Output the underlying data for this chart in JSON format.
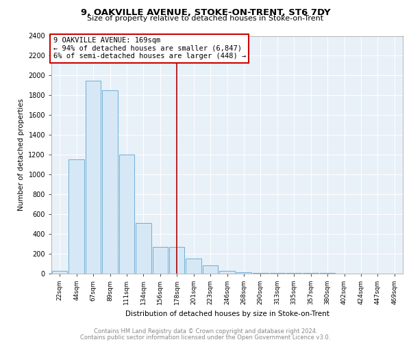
{
  "title1": "9, OAKVILLE AVENUE, STOKE-ON-TRENT, ST6 7DY",
  "title2": "Size of property relative to detached houses in Stoke-on-Trent",
  "xlabel": "Distribution of detached houses by size in Stoke-on-Trent",
  "ylabel": "Number of detached properties",
  "footer1": "Contains HM Land Registry data © Crown copyright and database right 2024.",
  "footer2": "Contains public sector information licensed under the Open Government Licence v3.0.",
  "annotation_line1": "9 OAKVILLE AVENUE: 169sqm",
  "annotation_line2": "← 94% of detached houses are smaller (6,847)",
  "annotation_line3": "6% of semi-detached houses are larger (448) →",
  "vline_color": "#aa0000",
  "bar_color": "#d6e8f5",
  "bar_edge_color": "#6baed6",
  "annotation_box_edge": "#cc0000",
  "plot_bg_color": "#e8f0f8",
  "ylim": [
    0,
    2400
  ],
  "yticks": [
    0,
    200,
    400,
    600,
    800,
    1000,
    1200,
    1400,
    1600,
    1800,
    2000,
    2200,
    2400
  ],
  "categories": [
    "22sqm",
    "44sqm",
    "67sqm",
    "89sqm",
    "111sqm",
    "134sqm",
    "156sqm",
    "178sqm",
    "201sqm",
    "223sqm",
    "246sqm",
    "268sqm",
    "290sqm",
    "313sqm",
    "335sqm",
    "357sqm",
    "380sqm",
    "402sqm",
    "424sqm",
    "447sqm",
    "469sqm"
  ],
  "values": [
    30,
    1150,
    1950,
    1850,
    1200,
    510,
    270,
    270,
    150,
    80,
    30,
    15,
    10,
    8,
    6,
    5,
    4,
    3,
    0,
    0,
    0
  ],
  "vline_index": 7
}
